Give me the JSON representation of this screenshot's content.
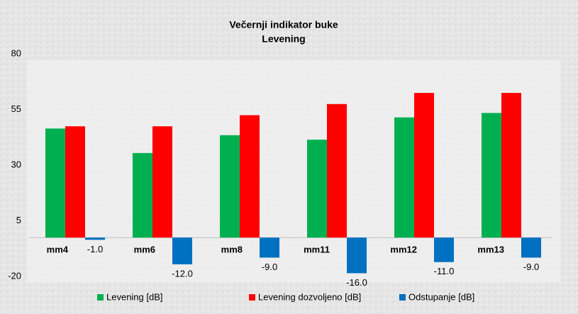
{
  "chart_data": {
    "type": "bar",
    "title": "Večernji indikator buke",
    "subtitle": "Levening",
    "categories": [
      "mm4",
      "mm6",
      "mm8",
      "mm11",
      "mm12",
      "mm13"
    ],
    "series": [
      {
        "name": "Levening [dB]",
        "color": "#00b050",
        "values": [
          49,
          38,
          46,
          44,
          54,
          56
        ]
      },
      {
        "name": "Levening dozvoljeno [dB]",
        "color": "#ff0000",
        "values": [
          50,
          50,
          55,
          60,
          65,
          65
        ]
      },
      {
        "name": "Odstupanje [dB]",
        "color": "#0070c0",
        "values": [
          -1,
          -12,
          -9,
          -16,
          -11,
          -9
        ],
        "value_labels": [
          "-1.0",
          "-12.0",
          "-9.0",
          "-16.0",
          "-11.0",
          "-9.0"
        ]
      }
    ],
    "ylim": [
      -20,
      80
    ],
    "yticks": [
      80,
      55,
      30,
      5,
      -20
    ],
    "legend": "bottom"
  }
}
